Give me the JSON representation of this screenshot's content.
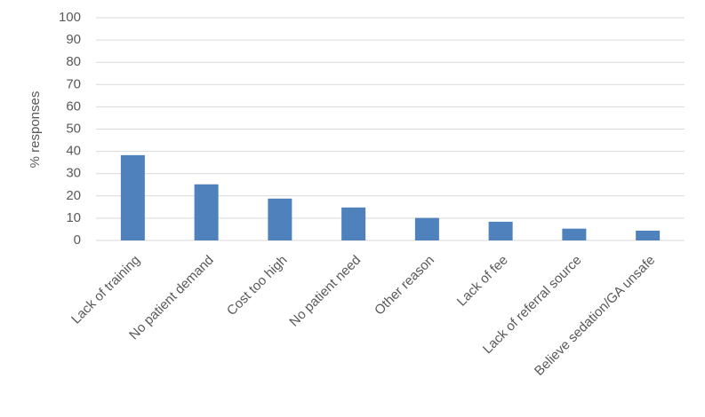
{
  "chart_data": {
    "type": "bar",
    "y_label": "% responses",
    "categories": [
      "Lack of training",
      "No patient demand",
      "Cost too high",
      "No patient need",
      "Other reason",
      "Lack of fee",
      "Lack of referral source",
      "Believe sedation/GA unsafe"
    ],
    "values": [
      38.3,
      25.2,
      18.8,
      14.8,
      10.1,
      8.4,
      5.3,
      4.4
    ],
    "color": "#4f81bd",
    "ylim": [
      0,
      100
    ],
    "yticks": [
      0,
      10,
      20,
      30,
      40,
      50,
      60,
      70,
      80,
      90,
      100
    ],
    "grid": true
  }
}
